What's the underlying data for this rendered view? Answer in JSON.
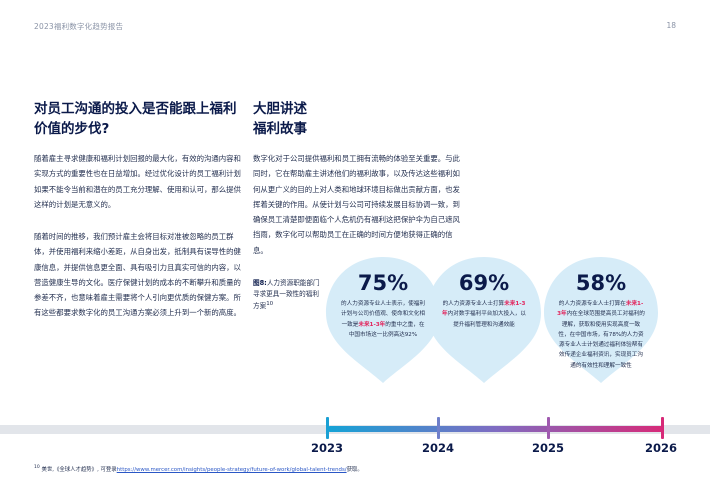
{
  "header": {
    "report_title": "2023福利数字化趋势报告",
    "page_number": "18"
  },
  "left_column": {
    "heading": "对员工沟通的投入是否能跟上福利价值的步伐?",
    "paragraph1": "随着雇主寻求健康和福利计划回报的最大化，有效的沟通内容和实现方式的重要性也在日益增加。经过优化设计的员工福利计划如果不能令当前和潜在的员工充分理解、使用和认可，那么提供这样的计划是无意义的。",
    "paragraph2": "随着时间的推移，我们预计雇主会将目标对准被忽略的员工群体，并使用福利来缩小差距，从自身出发，抵制具有误导性的健康信息，并提供信息更全面、具有吸引力且真实可信的内容，以营造健康生导的文化。医疗保健计划的成本的不断攀升和质量的参差不齐，也意味着雇主需要将个人引向更优质的保健方案。所有这些都要求数字化的员工沟通方案必须上升到一个新的高度。"
  },
  "right_column": {
    "heading_line1": "大胆讲述",
    "heading_line2": "福利故事",
    "paragraph": "数字化对于公司提供福利和员工拥有流畅的体验至关重要。与此同时，它在帮助雇主讲述他们的福利故事，以及传达这些福利如何从更广义的目的上对人类和地球环境目标做出贡献方面，也发挥着关键的作用。从使计划与公司可持续发展目标协调一致，到确保员工清楚即便面临个人危机仍有福利这把保护伞为自己遮风挡雨，数字化可以帮助员工在正确的时间方便地获得正确的信息。"
  },
  "figure": {
    "label": "图8:",
    "caption": "人力资源职能部门寻求更具一致性的福利方案",
    "footnote_ref": "10",
    "bubbles": [
      {
        "percent": "75%",
        "text_before": "的人力资源专业人士表示，使福利计划与公司价值观、使命和文化相一致是",
        "highlight": "未来1-3年",
        "text_after": "的重中之重，在中国市场这一比例高达92%"
      },
      {
        "percent": "69%",
        "text_before": "的人力资源专业人士打算",
        "highlight": "未来1-3年",
        "text_after": "内对数字福利平台加大投入，以提升福利管理和沟通效能"
      },
      {
        "percent": "58%",
        "text_before": "的人力资源专业人士打算在",
        "highlight": "未来1-3年",
        "text_after": "内在全球范围提高员工对福利的理解，获取和使用实现高度一致性，在中国市场，有78%的人力资源专业人士计划通过福利体验帮有效传递企业福利资讯，实现员工沟通的有效性和理解一致性"
      }
    ],
    "colors": {
      "bubble_fill": "#d6ecf8",
      "highlight": "#e2235b",
      "timeline_start": "#14a3d6",
      "timeline_end": "#d72a78"
    }
  },
  "timeline": {
    "years": [
      "2023",
      "2024",
      "2025",
      "2026"
    ]
  },
  "footnote": {
    "number": "10",
    "text": "美世,《全球人才趋势》, 可登录",
    "url": "https://www.mercer.com/insights/people-strategy/future-of-work/global-talent-trends/",
    "suffix": "获取。"
  }
}
